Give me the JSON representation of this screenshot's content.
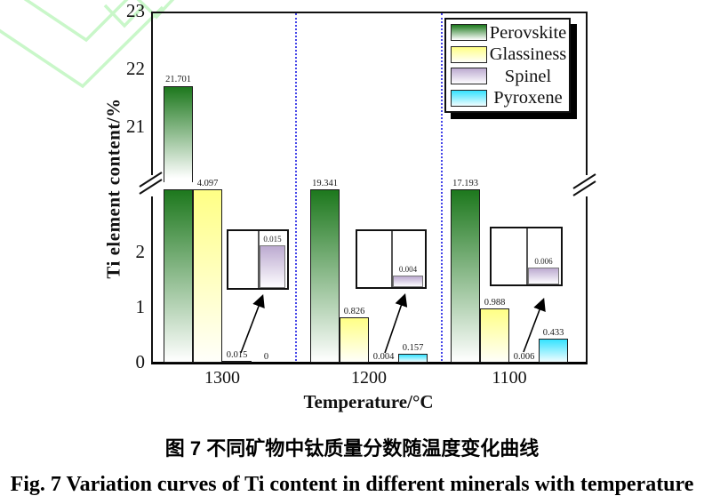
{
  "figure": {
    "caption_zh": "图 7 不同矿物中钛质量分数随温度变化曲线",
    "caption_en": "Fig. 7  Variation curves of Ti content in different minerals with temperature"
  },
  "chart_data": {
    "type": "bar",
    "title": "",
    "xlabel": "Temperature/°C",
    "ylabel": "Ti element content/%",
    "categories": [
      "1300",
      "1200",
      "1100"
    ],
    "series": [
      {
        "name": "Perovskite",
        "values": [
          21.701,
          19.341,
          17.193
        ],
        "labels": [
          "21.701",
          "19.341",
          "17.193"
        ],
        "color_top": "#1d781d",
        "color_bottom": "#ffffff"
      },
      {
        "name": "Glassiness",
        "values": [
          4.097,
          0.826,
          0.988
        ],
        "labels": [
          "4.097",
          "0.826",
          "0.988"
        ],
        "color_top": "#ffff85",
        "color_bottom": "#fffffa"
      },
      {
        "name": "Spinel",
        "values": [
          0.015,
          0.004,
          0.006
        ],
        "labels": [
          "0.015",
          "0.004",
          "0.006"
        ],
        "color_top": "#bcaad0",
        "color_bottom": "#fdfcff"
      },
      {
        "name": "Pyroxene",
        "values": [
          0,
          0.157,
          0.433
        ],
        "labels": [
          "0",
          "0.157",
          "0.433"
        ],
        "color_top": "#35e2ff",
        "color_bottom": "#f0fdff"
      }
    ],
    "axis": {
      "broken_axis": true,
      "lower_ticks": [
        "0",
        "1",
        "2"
      ],
      "upper_ticks": [
        "21",
        "22",
        "23"
      ],
      "lower_range": [
        0,
        3.1
      ],
      "upper_range": [
        20.1,
        23
      ],
      "grid": false
    },
    "legend": {
      "position": "top-right",
      "entries": [
        "Perovskite",
        "Glassiness",
        "Spinel",
        "Pyroxene"
      ]
    },
    "insets": [
      {
        "group": "1300",
        "label": "0.015",
        "value": 0.015
      },
      {
        "group": "1200",
        "label": "0.004",
        "value": 0.004
      },
      {
        "group": "1100",
        "label": "0.006",
        "value": 0.006
      }
    ],
    "separator_color": "#4444e8",
    "decor_color": "#c9f7c9"
  }
}
